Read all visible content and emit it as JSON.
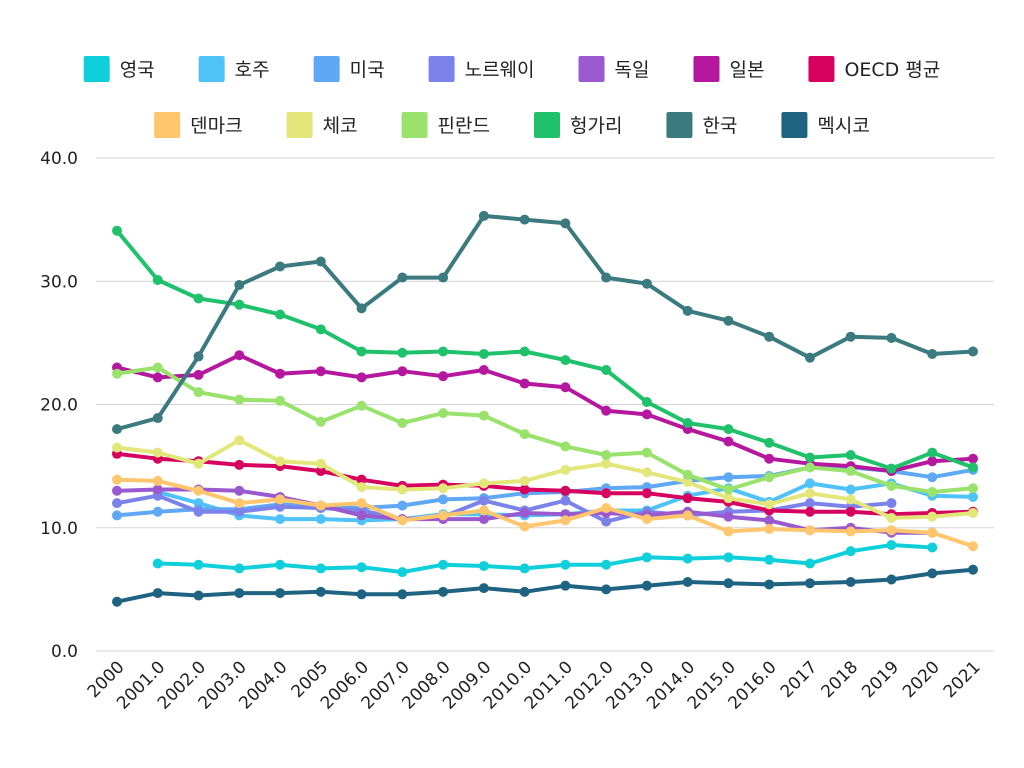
{
  "chart_data": {
    "type": "line",
    "title": "",
    "xlabel": "",
    "ylabel": "",
    "ylim": [
      0,
      40
    ],
    "y_ticks": [
      "0.0",
      "10.0",
      "20.0",
      "30.0",
      "40.0"
    ],
    "grid": "horizontal",
    "legend_position": "top",
    "categories": [
      "2000",
      "2001.0",
      "2002.0",
      "2003.0",
      "2004.0",
      "2005",
      "2006.0",
      "2007.0",
      "2008.0",
      "2009.0",
      "2010.0",
      "2011.0",
      "2012.0",
      "2013.0",
      "2014.0",
      "2015.0",
      "2016.0",
      "2017",
      "2018",
      "2019",
      "2020",
      "2021"
    ],
    "series": [
      {
        "name": "영국",
        "color": "#0fcfdb",
        "values": [
          null,
          7.1,
          7.0,
          6.7,
          7.0,
          6.7,
          6.8,
          6.4,
          7.0,
          6.9,
          6.7,
          7.0,
          7.0,
          7.6,
          7.5,
          7.6,
          7.4,
          7.1,
          8.1,
          8.6,
          8.4,
          null
        ]
      },
      {
        "name": "호주",
        "color": "#4fc3f7",
        "values": [
          null,
          12.9,
          12.0,
          11.0,
          10.7,
          10.7,
          10.6,
          10.7,
          11.1,
          11.1,
          11.0,
          11.1,
          11.4,
          11.4,
          12.6,
          13.2,
          12.1,
          13.6,
          13.1,
          13.6,
          12.6,
          12.5
        ]
      },
      {
        "name": "미국",
        "color": "#5fa8f5",
        "values": [
          11.0,
          11.3,
          11.5,
          11.5,
          11.9,
          11.7,
          11.6,
          11.8,
          12.3,
          12.4,
          12.8,
          12.9,
          13.2,
          13.3,
          13.8,
          14.1,
          14.2,
          14.9,
          14.9,
          14.6,
          14.1,
          14.7
        ]
      },
      {
        "name": "노르웨이",
        "color": "#7b83eb",
        "values": [
          12.0,
          12.6,
          11.3,
          11.3,
          11.7,
          11.6,
          11.4,
          10.7,
          10.9,
          12.2,
          11.4,
          12.2,
          10.5,
          11.3,
          11.0,
          11.3,
          11.4,
          12.0,
          11.7,
          12.0,
          null,
          null
        ]
      },
      {
        "name": "독일",
        "color": "#9b59d0",
        "values": [
          13.0,
          13.1,
          13.1,
          13.0,
          12.5,
          11.8,
          11.0,
          10.7,
          10.7,
          10.7,
          11.2,
          11.1,
          11.2,
          11.0,
          11.3,
          10.9,
          10.6,
          9.8,
          10.0,
          9.6,
          9.6,
          null
        ]
      },
      {
        "name": "일본",
        "color": "#b5179e",
        "values": [
          23.0,
          22.2,
          22.4,
          24.0,
          22.5,
          22.7,
          22.2,
          22.7,
          22.3,
          22.8,
          21.7,
          21.4,
          19.5,
          19.2,
          18.0,
          17.0,
          15.6,
          15.2,
          15.0,
          14.6,
          15.4,
          15.6
        ]
      },
      {
        "name": "OECD 평균",
        "color": "#d6005f",
        "values": [
          16.0,
          15.6,
          15.4,
          15.1,
          15.0,
          14.6,
          13.9,
          13.4,
          13.5,
          13.4,
          13.1,
          13.0,
          12.8,
          12.8,
          12.4,
          12.1,
          11.4,
          11.3,
          11.3,
          11.1,
          11.2,
          11.3
        ]
      },
      {
        "name": "덴마크",
        "color": "#ffc66d",
        "values": [
          13.9,
          13.8,
          13.0,
          12.0,
          12.3,
          11.8,
          12.0,
          10.6,
          11.0,
          11.4,
          10.1,
          10.6,
          11.6,
          10.7,
          11.0,
          9.7,
          9.9,
          9.8,
          9.7,
          9.8,
          9.6,
          8.5
        ]
      },
      {
        "name": "체코",
        "color": "#e3e77a",
        "values": [
          16.5,
          16.1,
          15.2,
          17.1,
          15.4,
          15.2,
          13.3,
          13.1,
          13.2,
          13.6,
          13.8,
          14.7,
          15.2,
          14.5,
          13.7,
          12.4,
          11.9,
          12.8,
          12.3,
          10.8,
          10.9,
          11.2
        ]
      },
      {
        "name": "핀란드",
        "color": "#99e26b",
        "values": [
          22.5,
          23.0,
          21.0,
          20.4,
          20.3,
          18.6,
          19.9,
          18.5,
          19.3,
          19.1,
          17.6,
          16.6,
          15.9,
          16.1,
          14.3,
          13.1,
          14.1,
          14.9,
          14.6,
          13.4,
          12.9,
          13.2
        ]
      },
      {
        "name": "헝가리",
        "color": "#1fc16b",
        "values": [
          34.1,
          30.1,
          28.6,
          28.1,
          27.3,
          26.1,
          24.3,
          24.2,
          24.3,
          24.1,
          24.3,
          23.6,
          22.8,
          20.2,
          18.5,
          18.0,
          16.9,
          15.7,
          15.9,
          14.8,
          16.1,
          14.9
        ]
      },
      {
        "name": "한국",
        "color": "#3b7a7e",
        "values": [
          18.0,
          18.9,
          23.9,
          29.7,
          31.2,
          31.6,
          27.8,
          30.3,
          30.3,
          35.3,
          35.0,
          34.7,
          30.3,
          29.8,
          27.6,
          26.8,
          25.5,
          23.8,
          25.5,
          25.4,
          24.1,
          24.3
        ]
      },
      {
        "name": "멕시코",
        "color": "#1f6382",
        "values": [
          4.0,
          4.7,
          4.5,
          4.7,
          4.7,
          4.8,
          4.6,
          4.6,
          4.8,
          5.1,
          4.8,
          5.3,
          5.0,
          5.3,
          5.6,
          5.5,
          5.4,
          5.5,
          5.6,
          5.8,
          6.3,
          6.6
        ]
      }
    ]
  }
}
